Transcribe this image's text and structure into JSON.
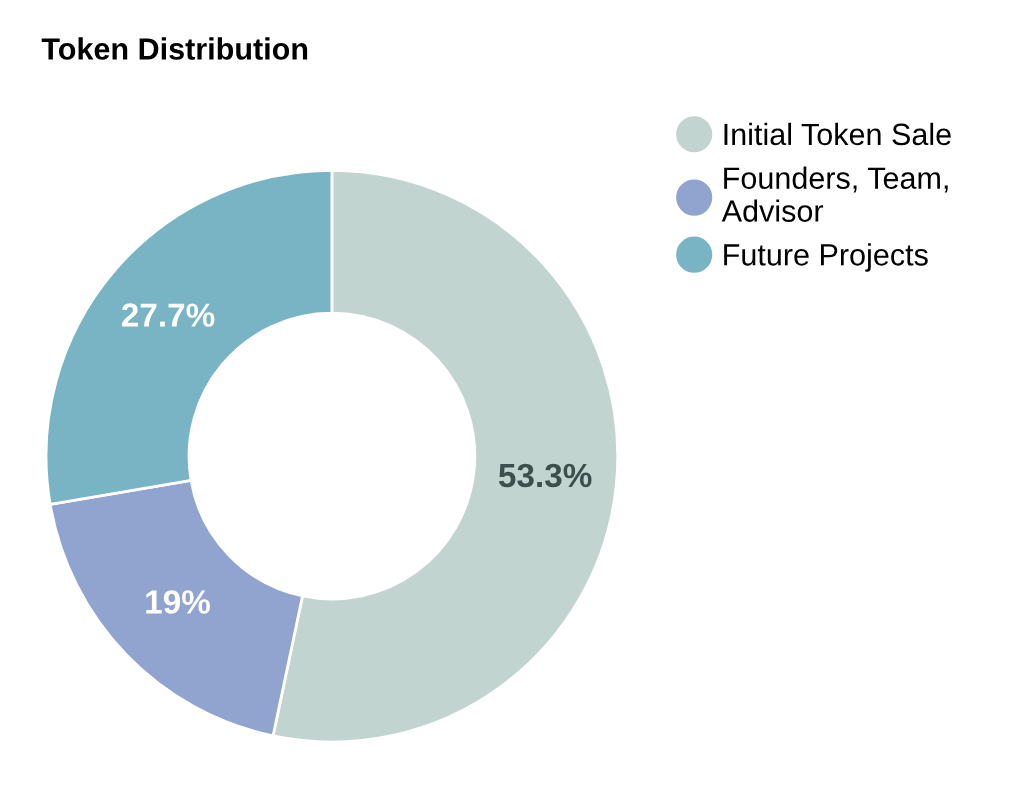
{
  "chart_data": {
    "type": "donut",
    "title": "Token Distribution",
    "categories": [
      "Initial Token Sale",
      "Founders, Team, Advisor",
      "Future Projects"
    ],
    "values": [
      53.3,
      19,
      27.7
    ],
    "colors": [
      "#c2d4d0",
      "#90a4cf",
      "#79b4c5"
    ],
    "value_labels": [
      "53.3%",
      "19%",
      "27.7%"
    ],
    "legend": "top right"
  }
}
